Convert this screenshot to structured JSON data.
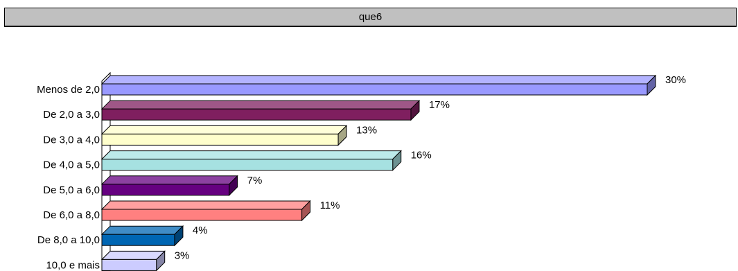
{
  "header": {
    "title": "que6"
  },
  "chart_data": {
    "type": "bar",
    "orientation": "horizontal",
    "style": "3d",
    "title": "que6",
    "categories": [
      "Menos de 2,0",
      "De 2,0 a 3,0",
      "De 3,0 a 4,0",
      "De 4,0 a 5,0",
      "De 5,0 a 6,0",
      "De 6,0 a 8,0",
      "De 8,0 a 10,0",
      "10,0 e mais"
    ],
    "values": [
      30,
      17,
      13,
      16,
      7,
      11,
      4,
      3
    ],
    "value_labels": [
      "30%",
      "17%",
      "13%",
      "16%",
      "7%",
      "11%",
      "4%",
      "3%"
    ],
    "unit": "%",
    "colors": [
      "#9999ff",
      "#7f1f5f",
      "#ffffcc",
      "#a6e1e1",
      "#660080",
      "#ff8080",
      "#0066b3",
      "#ccccff"
    ],
    "xlim": [
      0,
      30
    ],
    "grid": false,
    "legend": "none"
  }
}
